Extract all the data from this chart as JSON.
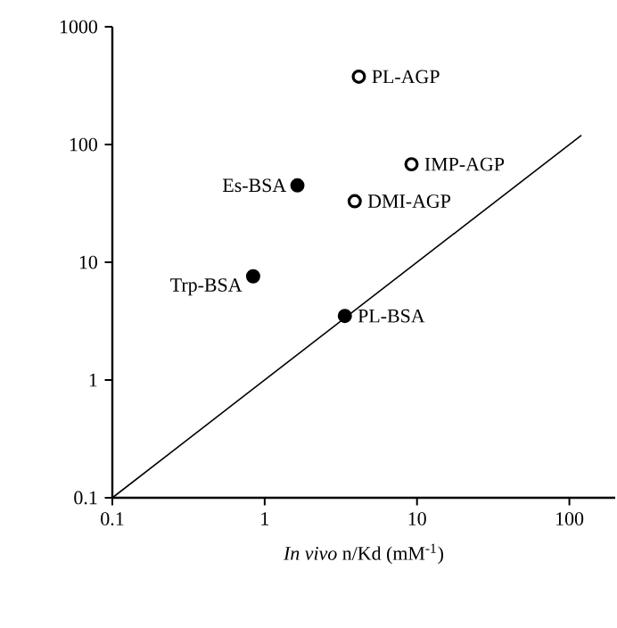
{
  "chart_data": {
    "type": "scatter",
    "xlabel": "*In vivo* n/Kd (mM$^{-1}$)",
    "log": "xy",
    "marker": "circle",
    "xlim": [
      0.1,
      200
    ],
    "ylim": [
      0.1,
      1000
    ],
    "xticks": [
      0.1,
      1,
      10,
      100
    ],
    "yticks": [
      0.1,
      1,
      10,
      100,
      1000
    ],
    "series": [
      {
        "color": "#ffffff",
        "x": [
          4.15,
          9.2,
          3.9
        ],
        "values": [
          377,
          68,
          33
        ]
      },
      {
        "color": "#000000",
        "x": [
          1.64,
          0.84,
          3.36
        ],
        "values": [
          45,
          7.6,
          3.5
        ]
      },
      {
        "type": "line",
        "marker": "none",
        "color": "#000000",
        "x": [
          0.1,
          120
        ],
        "values": [
          0.1,
          120
        ]
      }
    ],
    "annotations": [
      {
        "text": "PL-AGP",
        "x": 4.15,
        "y": 377
      },
      {
        "text": "IMP-AGP",
        "x": 9.2,
        "y": 68
      },
      {
        "text": "DMI-AGP",
        "x": 3.9,
        "y": 33
      },
      {
        "text": "Es-BSA",
        "x": 1.64,
        "y": 45
      },
      {
        "text": "Trp-BSA",
        "x": 0.84,
        "y": 7.6
      },
      {
        "text": "PL-BSA",
        "x": 3.36,
        "y": 3.5
      }
    ]
  }
}
